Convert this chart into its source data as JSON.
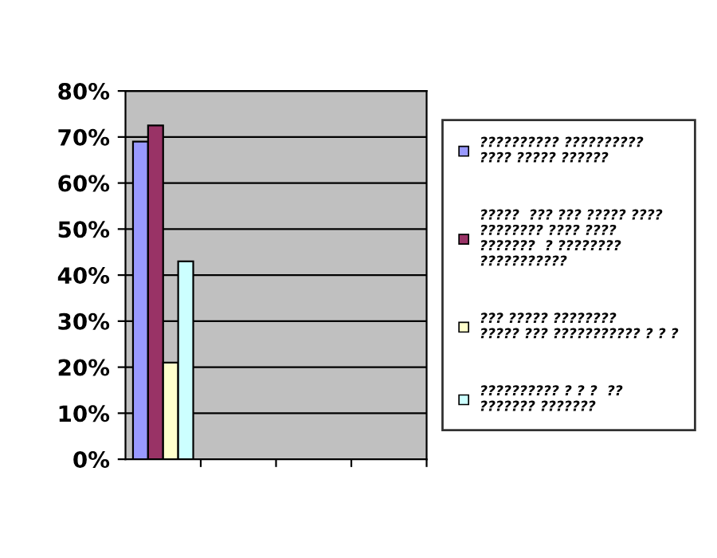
{
  "chart_data": {
    "type": "bar",
    "categories": [
      null,
      null,
      null,
      null
    ],
    "series": [
      {
        "name": "?????????? ??????????\n???? ????? ??????",
        "color": "#9999ff",
        "values": [
          69,
          null,
          null,
          null
        ]
      },
      {
        "name": "?????  ??? ??? ????? ????\n???????? ???? ????\n???????  ? ????????\n???????????",
        "color": "#993366",
        "values": [
          72.5,
          null,
          null,
          null
        ]
      },
      {
        "name": "??? ????? ????????\n????? ??? ??????????? ? ? ?",
        "color": "#ffffcc",
        "values": [
          21,
          null,
          null,
          null
        ]
      },
      {
        "name": "?????????? ? ? ?  ??\n??????? ???????",
        "color": "#ccffff",
        "values": [
          43,
          null,
          null,
          null
        ]
      }
    ],
    "ylim": [
      0,
      80
    ],
    "yticks": [
      {
        "value": 0,
        "label": "0%"
      },
      {
        "value": 10,
        "label": "10%"
      },
      {
        "value": 20,
        "label": "20%"
      },
      {
        "value": 30,
        "label": "30%"
      },
      {
        "value": 40,
        "label": "40%"
      },
      {
        "value": 50,
        "label": "50%"
      },
      {
        "value": 60,
        "label": "60%"
      },
      {
        "value": 70,
        "label": "70%"
      },
      {
        "value": 80,
        "label": "80%"
      }
    ],
    "grid": "y",
    "legend": "right"
  }
}
